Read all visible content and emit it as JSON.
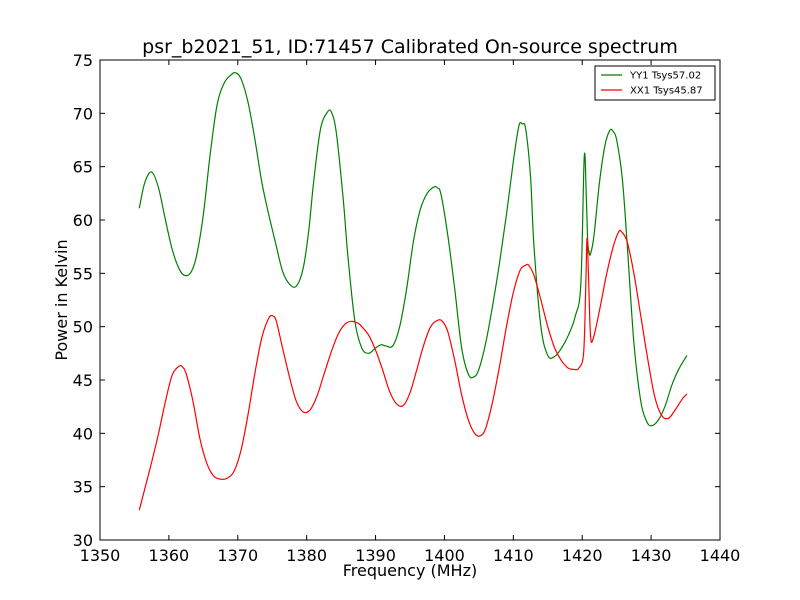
{
  "chart_data": {
    "type": "line",
    "title": "psr_b2021_51, ID:71457 Calibrated On-source spectrum",
    "xlabel": "Frequency (MHz)",
    "ylabel": "Power in Kelvin",
    "xlim": [
      1350,
      1440
    ],
    "ylim": [
      30,
      75
    ],
    "xticks": [
      "1350",
      "1360",
      "1370",
      "1380",
      "1390",
      "1400",
      "1410",
      "1420",
      "1430",
      "1440"
    ],
    "yticks": [
      "30",
      "35",
      "40",
      "45",
      "50",
      "55",
      "60",
      "65",
      "70",
      "75"
    ],
    "grid": false,
    "legend_position": "top-right",
    "series": [
      {
        "name": "YY1 Tsys57.02",
        "color": "#008000",
        "x": [
          1355.7,
          1356.5,
          1357.5,
          1358.5,
          1359.5,
          1360.5,
          1361.5,
          1362.3,
          1363.2,
          1364,
          1365,
          1366,
          1367,
          1368,
          1369,
          1369.7,
          1370.5,
          1371.5,
          1372.5,
          1373.5,
          1374.5,
          1375.5,
          1376.5,
          1377.5,
          1378.5,
          1379.5,
          1380.3,
          1381,
          1382,
          1383,
          1383.6,
          1384.3,
          1385.3,
          1386,
          1387,
          1388,
          1389,
          1390,
          1390.8,
          1391.5,
          1392.5,
          1393.5,
          1394.5,
          1395.5,
          1396.5,
          1397.5,
          1398.5,
          1399,
          1399.5,
          1400.5,
          1401.5,
          1402.5,
          1403.5,
          1404.3,
          1405,
          1406,
          1407,
          1408,
          1409,
          1410,
          1410.8,
          1411.3,
          1411.8,
          1412.5,
          1413,
          1414,
          1415,
          1416,
          1417,
          1418,
          1419,
          1419.8,
          1420.3,
          1420.6,
          1420.8,
          1421,
          1421.2,
          1421.7,
          1422.5,
          1423.3,
          1424,
          1424.5,
          1425,
          1425.8,
          1426.5,
          1427.5,
          1428.5,
          1429.3,
          1430,
          1431,
          1432,
          1433,
          1434,
          1435.2
        ],
        "values": [
          61.1,
          63.5,
          64.5,
          63,
          60,
          57.2,
          55.4,
          54.8,
          55.1,
          56.6,
          60.5,
          66.2,
          70.8,
          72.8,
          73.6,
          73.8,
          73.2,
          71,
          67.5,
          63.5,
          60.5,
          57.8,
          55.2,
          54,
          53.8,
          55.5,
          59,
          63.5,
          68.5,
          70.1,
          70.1,
          68.2,
          62,
          56.5,
          50.5,
          48,
          47.5,
          48,
          48.3,
          48.2,
          48.2,
          50,
          53.5,
          58,
          61,
          62.5,
          63.1,
          63,
          62.4,
          58.5,
          53.5,
          48,
          45.5,
          45.3,
          46,
          48.5,
          52,
          56,
          60.5,
          65.5,
          68.8,
          69,
          68.5,
          64,
          57.5,
          50,
          47.3,
          47.2,
          48,
          49.2,
          51,
          54,
          66,
          62,
          58,
          57,
          56.8,
          58.5,
          63.5,
          67,
          68.4,
          68.3,
          67.5,
          64,
          58,
          48.5,
          43,
          41.2,
          40.7,
          41.2,
          42.5,
          44.5,
          46,
          47.3
        ]
      },
      {
        "name": "XX1 Tsys45.87",
        "color": "#ff0000",
        "x": [
          1355.7,
          1356.5,
          1357.5,
          1358.5,
          1359.5,
          1360.5,
          1361.5,
          1362,
          1362.5,
          1363.5,
          1364.5,
          1365.5,
          1366.5,
          1367.5,
          1368.5,
          1369.5,
          1370.5,
          1371.5,
          1372.5,
          1373.5,
          1374.5,
          1375.1,
          1375.6,
          1376.5,
          1377.5,
          1378.5,
          1379.5,
          1380.5,
          1381.5,
          1382.5,
          1383.5,
          1384.5,
          1385.5,
          1386.5,
          1387.5,
          1388,
          1389,
          1390,
          1391,
          1392,
          1393,
          1394,
          1395,
          1396,
          1397,
          1398,
          1399,
          1399.7,
          1400.5,
          1401.5,
          1402.5,
          1403.5,
          1404.5,
          1405.3,
          1406,
          1407,
          1408,
          1409,
          1410,
          1411,
          1411.9,
          1412.3,
          1413,
          1414,
          1415,
          1416,
          1417,
          1418,
          1418.8,
          1419.5,
          1420.2,
          1420.5,
          1420.7,
          1420.9,
          1421.2,
          1421.6,
          1422.5,
          1423.5,
          1424.5,
          1425.3,
          1425.7,
          1426.5,
          1427.5,
          1428.5,
          1429.5,
          1430.5,
          1431.5,
          1432.5,
          1433.5,
          1434.5,
          1435.2
        ],
        "values": [
          32.8,
          34.8,
          37.3,
          40,
          43,
          45.5,
          46.3,
          46.2,
          45.6,
          43,
          39.5,
          37.2,
          36,
          35.7,
          35.8,
          36.5,
          38.5,
          41.8,
          45.7,
          49,
          50.8,
          51,
          50.5,
          48,
          45.3,
          43,
          42,
          42.2,
          43.5,
          45.5,
          47.5,
          49.2,
          50.2,
          50.5,
          50.3,
          50,
          49.2,
          47.8,
          46,
          44,
          42.8,
          42.6,
          43.8,
          46,
          48.3,
          50,
          50.6,
          50.5,
          49.5,
          46.8,
          43.6,
          41.2,
          39.9,
          39.8,
          40.5,
          43,
          46.3,
          50,
          53.2,
          55.3,
          55.8,
          55.7,
          54.8,
          52.5,
          50,
          48,
          46.8,
          46.1,
          46,
          46.1,
          47.5,
          53.5,
          58.3,
          55,
          49.2,
          48.9,
          51.5,
          54.8,
          57.5,
          58.9,
          58.9,
          58,
          55,
          51,
          47,
          43.5,
          41.7,
          41.4,
          42.2,
          43.2,
          43.7
        ]
      }
    ]
  }
}
